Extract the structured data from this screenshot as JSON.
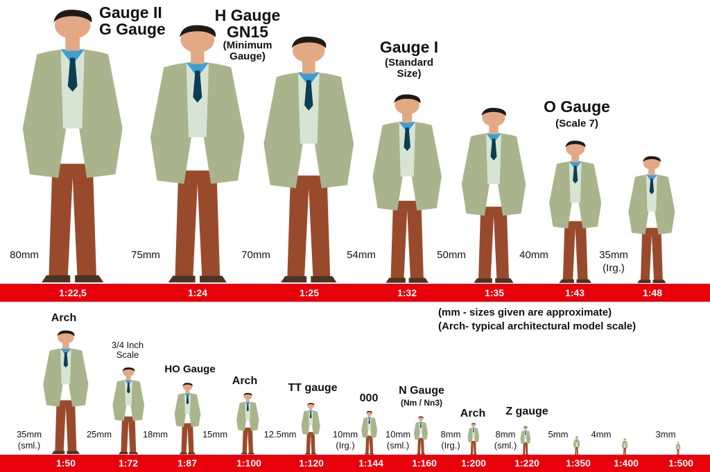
{
  "colors": {
    "bar": "#e8000b",
    "jacket": "#a9b48c",
    "shirt": "#3b9fd3",
    "trousers": "#9a4a2c",
    "skin": "#e3a984",
    "hair": "#1f1a16"
  },
  "top_row": [
    {
      "scale": "1:22,5",
      "size": "80mm",
      "gauge": [
        "Gauge II",
        "G Gauge"
      ]
    },
    {
      "scale": "1:24",
      "size": "75mm",
      "gauge": [
        "H Gauge",
        "GN15"
      ],
      "note": [
        "(Minimum",
        "Gauge)"
      ]
    },
    {
      "scale": "1:25",
      "size": "70mm"
    },
    {
      "scale": "1:32",
      "size": "54mm",
      "gauge": [
        "Gauge I"
      ],
      "note": [
        "(Standard",
        "Size)"
      ]
    },
    {
      "scale": "1:35",
      "size": "50mm"
    },
    {
      "scale": "1:43",
      "size": "40mm",
      "gauge": [
        "O Gauge"
      ],
      "note": [
        "(Scale 7)"
      ]
    },
    {
      "scale": "1:48",
      "size": "35mm",
      "size_note": "(Irg.)"
    }
  ],
  "bottom_row": [
    {
      "scale": "1:50",
      "size": "35mm",
      "size_note": "(sml.)",
      "gauge": "Arch"
    },
    {
      "scale": "1:72",
      "size": "25mm",
      "gauge": "3/4 Inch",
      "gauge_note": "Scale"
    },
    {
      "scale": "1:87",
      "size": "18mm",
      "gauge": "HO Gauge"
    },
    {
      "scale": "1:100",
      "size": "15mm",
      "gauge": "Arch"
    },
    {
      "scale": "1:120",
      "size": "12.5mm",
      "gauge": "TT gauge"
    },
    {
      "scale": "1:144",
      "size": "10mm",
      "size_note": "(Irg.)",
      "gauge": "000"
    },
    {
      "scale": "1:160",
      "size": "10mm",
      "size_note": "(sml.)",
      "gauge": "N Gauge",
      "gauge_note": "(Nm / Nn3)"
    },
    {
      "scale": "1:200",
      "size": "8mm",
      "size_note": "(Irg.)",
      "gauge": "Arch"
    },
    {
      "scale": "1:220",
      "size": "8mm",
      "size_note": "(sml.)",
      "gauge": "Z gauge"
    },
    {
      "scale": "1:350",
      "size": "5mm"
    },
    {
      "scale": "1:400",
      "size": "4mm"
    },
    {
      "scale": "1:500",
      "size": "3mm"
    }
  ],
  "notes": [
    "(mm - sizes given are approximate)",
    "(Arch- typical architectural model scale)"
  ]
}
